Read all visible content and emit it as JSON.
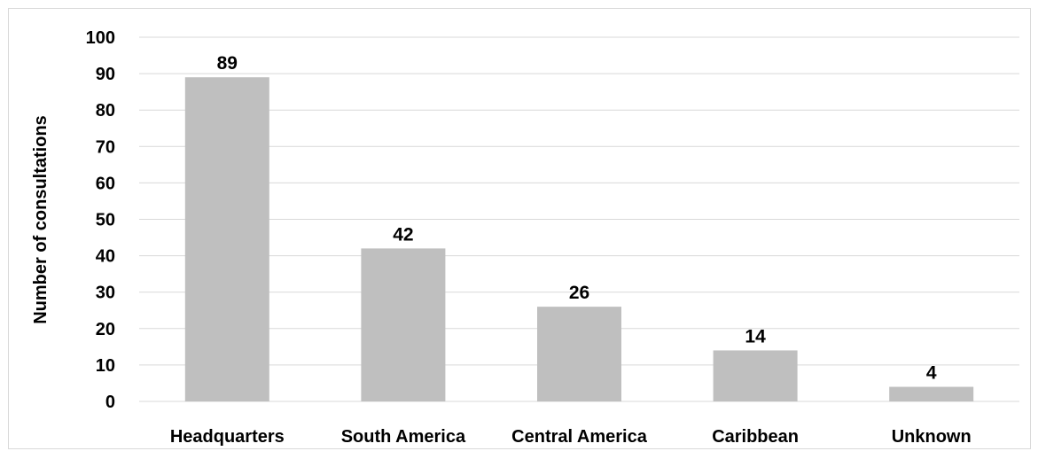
{
  "chart_data": {
    "type": "bar",
    "title": "",
    "xlabel": "",
    "ylabel": "Number of consultations",
    "categories": [
      "Headquarters",
      "South America",
      "Central America",
      "Caribbean",
      "Unknown"
    ],
    "values": [
      89,
      42,
      26,
      14,
      4
    ],
    "ylim": [
      0,
      100
    ],
    "yticks": [
      "0",
      "10",
      "20",
      "30",
      "40",
      "50",
      "60",
      "70",
      "80",
      "90",
      "100"
    ],
    "grid": true,
    "legend": "none",
    "colors": {
      "bar": "#bfbfbf",
      "grid": "#d9d9d9",
      "text": "#000000"
    }
  }
}
